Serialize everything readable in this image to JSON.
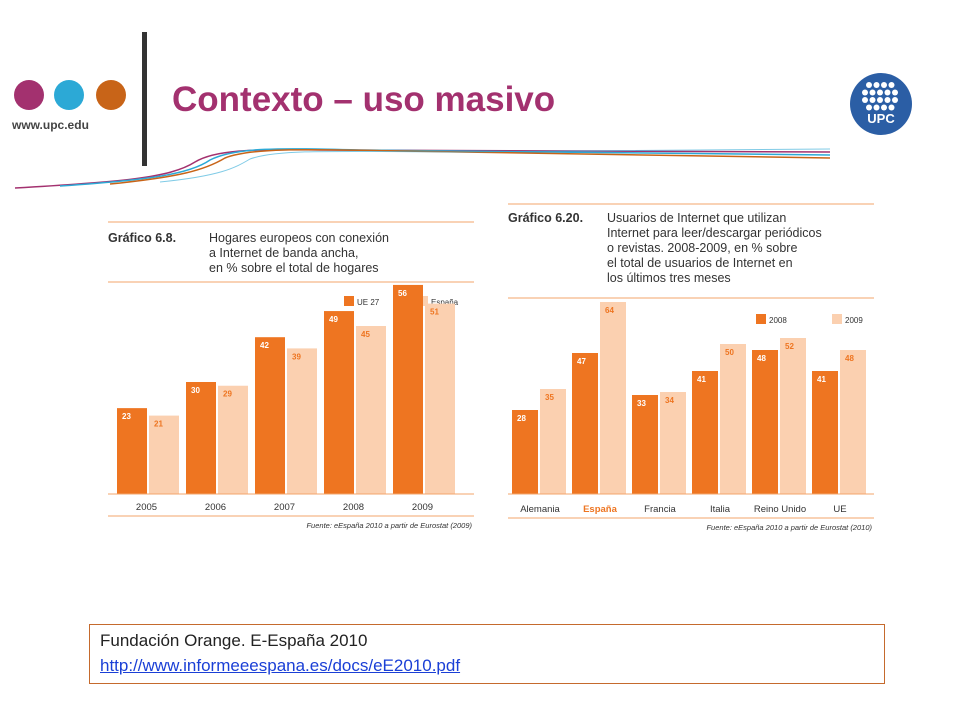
{
  "header": {
    "site_url": "www.upc.edu",
    "title": "Contexto – uso masivo",
    "logo_text": "UPC",
    "dot_colors": [
      "#a3316f",
      "#2ca9d6",
      "#c86418"
    ]
  },
  "colors": {
    "primary_series": "#ee7521",
    "secondary_series": "#fbd0b0",
    "rule": "#f3a56b",
    "highlight_label": "#ee7521"
  },
  "chart_data": [
    {
      "type": "bar",
      "label": "Gráfico 6.8.",
      "caption_lines": [
        "Hogares europeos con conexión",
        "a Internet de banda ancha,",
        "en % sobre el total de hogares"
      ],
      "categories": [
        "2005",
        "2006",
        "2007",
        "2008",
        "2009"
      ],
      "series": [
        {
          "name": "UE 27",
          "values": [
            23,
            30,
            42,
            49,
            56
          ]
        },
        {
          "name": "España",
          "values": [
            21,
            29,
            39,
            45,
            51
          ]
        }
      ],
      "ylim": [
        0,
        60
      ],
      "legend": "top-right",
      "grid": false,
      "source": "Fuente: eEspaña 2010 a partir de Eurostat (2009)"
    },
    {
      "type": "bar",
      "label": "Gráfico 6.20.",
      "caption_lines": [
        "Usuarios de Internet que utilizan",
        "Internet para leer/descargar periódicos",
        "o revistas. 2008-2009, en % sobre",
        "el total de usuarios de Internet en",
        "los últimos tres meses"
      ],
      "categories": [
        "Alemania",
        "España",
        "Francia",
        "Italia",
        "Reino Unido",
        "UE"
      ],
      "highlight_category": "España",
      "series": [
        {
          "name": "2008",
          "values": [
            28,
            47,
            33,
            41,
            48,
            41
          ]
        },
        {
          "name": "2009",
          "values": [
            35,
            64,
            34,
            50,
            52,
            48
          ]
        }
      ],
      "ylim": [
        0,
        70
      ],
      "legend": "top-right",
      "grid": false,
      "source": "Fuente: eEspaña 2010 a partir de Eurostat (2010)"
    }
  ],
  "reference": {
    "text": "Fundación Orange. E-España 2010",
    "link": "http://www.informeeespana.es/docs/eE2010.pdf"
  }
}
